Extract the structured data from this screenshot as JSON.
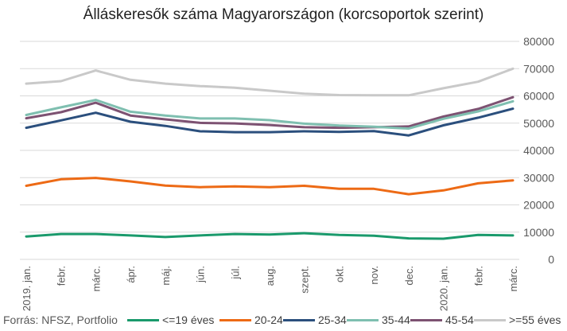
{
  "chart_data": {
    "type": "line",
    "title": "Álláskeresők száma Magyarországon (korcsoportok szerint)",
    "categories": [
      "2019. jan.",
      "febr.",
      "márc.",
      "ápr.",
      "máj.",
      "jún.",
      "júl.",
      "aug.",
      "szept.",
      "okt.",
      "nov.",
      "dec.",
      "2020. jan.",
      "febr.",
      "márc."
    ],
    "y_axis": {
      "min": 0,
      "max": 80000,
      "step": 10000,
      "position": "right",
      "tick_labels": [
        "0",
        "10000",
        "20000",
        "30000",
        "40000",
        "50000",
        "60000",
        "70000",
        "80000"
      ]
    },
    "grid": true,
    "legend_position": "bottom",
    "series": [
      {
        "name": "<=19 éves",
        "color": "#1a9a6c",
        "values": [
          8400,
          9300,
          9300,
          8800,
          8200,
          8800,
          9300,
          9100,
          9600,
          9000,
          8700,
          7700,
          7600,
          9000,
          8800
        ]
      },
      {
        "name": "20-24",
        "color": "#ed6a15",
        "values": [
          27000,
          29400,
          29900,
          28600,
          27100,
          26500,
          26800,
          26500,
          27000,
          25900,
          25900,
          23900,
          25300,
          27900,
          29000
        ]
      },
      {
        "name": "25-34",
        "color": "#2b4f7d",
        "values": [
          48300,
          51000,
          53800,
          50500,
          49000,
          47000,
          46700,
          46700,
          47000,
          46800,
          47100,
          45500,
          49200,
          52000,
          55300
        ]
      },
      {
        "name": "35-44",
        "color": "#7fbfb0",
        "values": [
          53000,
          55800,
          58500,
          54200,
          52800,
          51700,
          51700,
          51100,
          49800,
          49100,
          48700,
          48000,
          51600,
          54300,
          58000
        ]
      },
      {
        "name": "45-54",
        "color": "#7d5272",
        "values": [
          51800,
          54000,
          57500,
          52800,
          51400,
          50100,
          49900,
          49300,
          48500,
          48300,
          48500,
          48800,
          52400,
          55200,
          59500
        ]
      },
      {
        "name": ">=55 éves",
        "color": "#c9c9c9",
        "values": [
          64500,
          65400,
          69300,
          65900,
          64500,
          63600,
          63000,
          61900,
          60800,
          60300,
          60200,
          60200,
          62800,
          65200,
          70000
        ]
      }
    ]
  },
  "source": "Forrás: NFSZ, Portfolio"
}
